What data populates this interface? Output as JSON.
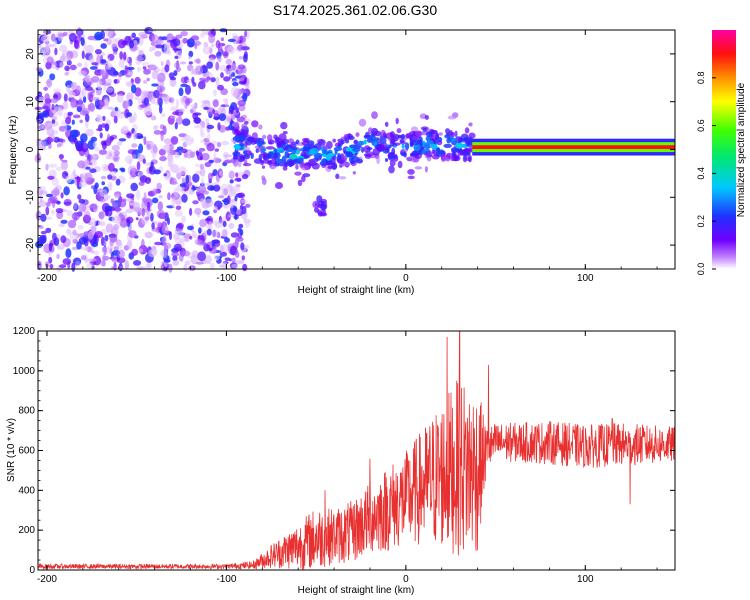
{
  "figure_title": "S174.2025.361.02.06.G30",
  "colors": {
    "snr_line": "#e83030",
    "axis": "#000000",
    "colorbar": [
      "#ffffff",
      "#a000c0",
      "#3000ff",
      "#00c0ff",
      "#00ff40",
      "#ffff00",
      "#ff8000",
      "#ff0000",
      "#ff00a0"
    ]
  },
  "chart_data": [
    {
      "type": "heatmap",
      "title": "",
      "xlabel": "Height of straight line (km)",
      "ylabel": "Frequency (Hz)",
      "xlim": [
        -205,
        150
      ],
      "ylim": [
        -25,
        25
      ],
      "x_ticks": [
        -200,
        -100,
        0,
        100
      ],
      "x_tick_labels": [
        "-200",
        "-100",
        "0",
        "100"
      ],
      "y_ticks": [
        -20,
        -10,
        0,
        10,
        20
      ],
      "y_tick_labels": [
        "-20",
        "-10",
        "0",
        "10",
        "20"
      ],
      "colorbar": {
        "label": "Normalized spectral amplitude",
        "range": [
          0,
          1
        ],
        "ticks": [
          0.0,
          0.2,
          0.4,
          0.6,
          0.8
        ],
        "tick_labels": [
          "0.0",
          "0.2",
          "0.4",
          "0.6",
          "0.8"
        ]
      },
      "regions": [
        {
          "name": "noise",
          "x_range": [
            -205,
            -88
          ],
          "freq_range": [
            -25,
            25
          ],
          "amplitude": 0.15
        },
        {
          "name": "scattered-signal",
          "x_range": [
            -95,
            37
          ],
          "center_freq": [
            [
              -95,
              1
            ],
            [
              -70,
              -1
            ],
            [
              -40,
              -1
            ],
            [
              -20,
              1
            ],
            [
              -5,
              0
            ],
            [
              10,
              1
            ],
            [
              37,
              1
            ]
          ],
          "band_halfwidth": 3,
          "amplitude": 0.3
        },
        {
          "name": "side-blob",
          "x_range": [
            -50,
            -45
          ],
          "freq_range": [
            -14,
            -10
          ],
          "amplitude": 0.15
        },
        {
          "name": "steady-line",
          "x_range": [
            37,
            150
          ],
          "center_freq": 0.5,
          "band_halfwidth": 0.8,
          "amplitude": 0.9
        }
      ]
    },
    {
      "type": "line",
      "title": "",
      "xlabel": "Height of straight line (km)",
      "ylabel": "SNR (10 * v/v)",
      "xlim": [
        -205,
        150
      ],
      "ylim": [
        0,
        1200
      ],
      "x_ticks": [
        -200,
        -100,
        0,
        100
      ],
      "x_tick_labels": [
        "-200",
        "-100",
        "0",
        "100"
      ],
      "y_ticks": [
        0,
        200,
        400,
        600,
        800,
        1000,
        1200
      ],
      "y_tick_labels": [
        "0",
        "200",
        "400",
        "600",
        "800",
        "1000",
        "1200"
      ],
      "series": [
        {
          "name": "SNR",
          "envelope": {
            "x": [
              -205,
              -100,
              -85,
              -75,
              -60,
              -50,
              -40,
              -30,
              -20,
              -10,
              0,
              10,
              20,
              30,
              40,
              45,
              50,
              60,
              80,
              100,
              120,
              150
            ],
            "mean": [
              18,
              18,
              25,
              70,
              120,
              160,
              170,
              190,
              260,
              310,
              360,
              420,
              480,
              520,
              500,
              600,
              640,
              640,
              640,
              620,
              630,
              630
            ],
            "spread": [
              12,
              12,
              20,
              60,
              120,
              160,
              140,
              160,
              180,
              220,
              240,
              300,
              380,
              450,
              420,
              120,
              100,
              100,
              110,
              110,
              110,
              90
            ]
          },
          "peaks": [
            [
              30,
              1200
            ],
            [
              23,
              1170
            ],
            [
              -45,
              400
            ],
            [
              -30,
              310
            ],
            [
              46,
              1030
            ],
            [
              -20,
              560
            ],
            [
              125,
              330
            ],
            [
              115,
              760
            ]
          ]
        }
      ]
    }
  ]
}
